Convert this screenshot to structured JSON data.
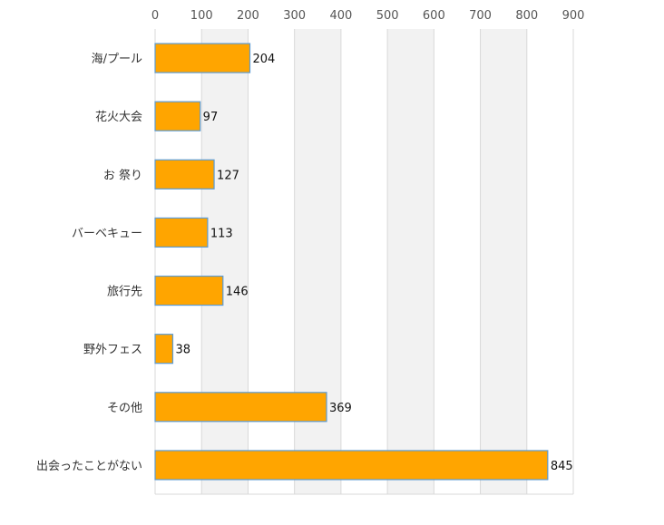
{
  "chart_data": {
    "type": "bar",
    "orientation": "horizontal",
    "categories": [
      "海/プール",
      "花火大会",
      "お 祭り",
      "バーベキュー",
      "旅行先",
      "野外フェス",
      "その他",
      "出会ったことがない"
    ],
    "values": [
      204,
      97,
      127,
      113,
      146,
      38,
      369,
      845
    ],
    "xlim": [
      0,
      900
    ],
    "xticks": [
      "0",
      "100",
      "200",
      "300",
      "400",
      "500",
      "600",
      "700",
      "800",
      "900"
    ],
    "x_axis_position": "top",
    "grid": true,
    "alternating_bands": true,
    "data_labels": true,
    "bar_color": "#ffa500",
    "bar_border_color": "#5b9bd5",
    "band_color": "#f2f2f2",
    "grid_color": "#d9d9d9"
  }
}
